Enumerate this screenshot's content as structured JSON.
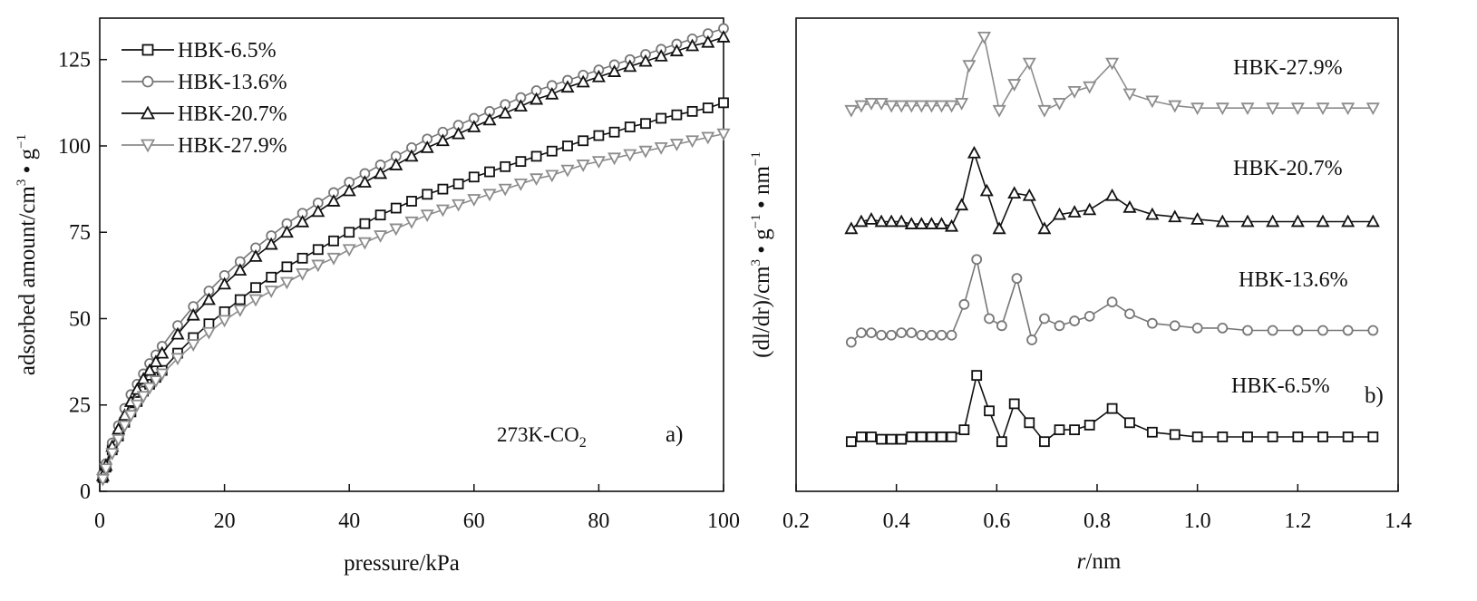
{
  "chart_data": [
    {
      "panel": "a)",
      "type": "line",
      "annotation_main": "273K-CO",
      "annotation_sub": "2",
      "xlabel": "pressure/kPa",
      "ylabel": "adsorbed amount/cm",
      "ylabel_sup1": "3",
      "ylabel_mid": " • g",
      "ylabel_sup2": "−1",
      "xlim": [
        0,
        100
      ],
      "ylim": [
        0,
        137
      ],
      "xticks": [
        0,
        20,
        40,
        60,
        80,
        100
      ],
      "yticks": [
        0,
        25,
        50,
        75,
        100,
        125
      ],
      "legend_position": "top-left",
      "series": [
        {
          "name": "HBK-6.5%",
          "marker": "square",
          "color": "#111111",
          "x": [
            0.5,
            1,
            2,
            3,
            4,
            5,
            6,
            7,
            8,
            9,
            10,
            12.5,
            15,
            17.5,
            20,
            22.5,
            25,
            27.5,
            30,
            32.5,
            35,
            37.5,
            40,
            42.5,
            45,
            47.5,
            50,
            52.5,
            55,
            57.5,
            60,
            62.5,
            65,
            67.5,
            70,
            72.5,
            75,
            77.5,
            80,
            82.5,
            85,
            87.5,
            90,
            92.5,
            95,
            97.5,
            100
          ],
          "y": [
            4,
            7,
            12,
            16,
            20,
            23,
            26,
            29,
            31,
            33,
            35,
            40,
            44.5,
            48.5,
            52,
            55.5,
            59,
            62,
            65,
            67.5,
            70,
            72.5,
            75,
            77.5,
            80,
            82,
            84,
            86,
            87.5,
            89,
            91,
            92.5,
            94,
            95.5,
            97,
            98.5,
            100,
            101.5,
            103,
            104,
            105.5,
            106.5,
            108,
            109,
            110,
            111,
            112.5
          ]
        },
        {
          "name": "HBK-13.6%",
          "marker": "circle",
          "color": "#777777",
          "x": [
            0.5,
            1,
            2,
            3,
            4,
            5,
            6,
            7,
            8,
            9,
            10,
            12.5,
            15,
            17.5,
            20,
            22.5,
            25,
            27.5,
            30,
            32.5,
            35,
            37.5,
            40,
            42.5,
            45,
            47.5,
            50,
            52.5,
            55,
            57.5,
            60,
            62.5,
            65,
            67.5,
            70,
            72.5,
            75,
            77.5,
            80,
            82.5,
            85,
            87.5,
            90,
            92.5,
            95,
            97.5,
            100
          ],
          "y": [
            5,
            8,
            14,
            19,
            24,
            28,
            31,
            34,
            37,
            39.5,
            42,
            48,
            53.5,
            58,
            62.5,
            66.5,
            70.5,
            74,
            77.5,
            80.5,
            83.5,
            86.5,
            89.5,
            92,
            94.5,
            97,
            99.5,
            102,
            104,
            106,
            108,
            110,
            112,
            114,
            116,
            117.5,
            119,
            120.5,
            122,
            123.5,
            125,
            126.5,
            128,
            129.5,
            131,
            132.5,
            134
          ]
        },
        {
          "name": "HBK-20.7%",
          "marker": "triangle-up",
          "color": "#111111",
          "x": [
            0.5,
            1,
            2,
            3,
            4,
            5,
            6,
            7,
            8,
            9,
            10,
            12.5,
            15,
            17.5,
            20,
            22.5,
            25,
            27.5,
            30,
            32.5,
            35,
            37.5,
            40,
            42.5,
            45,
            47.5,
            50,
            52.5,
            55,
            57.5,
            60,
            62.5,
            65,
            67.5,
            70,
            72.5,
            75,
            77.5,
            80,
            82.5,
            85,
            87.5,
            90,
            92.5,
            95,
            97.5,
            100
          ],
          "y": [
            4.5,
            7.5,
            13,
            18,
            22,
            26,
            29.5,
            32.5,
            35,
            37.5,
            40,
            45.5,
            51,
            55.5,
            60,
            64,
            68,
            71.5,
            75,
            78,
            81,
            84,
            87,
            89.5,
            92,
            94.5,
            97,
            99.5,
            101.5,
            103.5,
            105.5,
            107.5,
            109.5,
            111.5,
            113.5,
            115,
            117,
            118.5,
            120,
            121.5,
            123,
            124.5,
            126,
            127.5,
            129,
            130,
            131.5
          ]
        },
        {
          "name": "HBK-27.9%",
          "marker": "triangle-down",
          "color": "#8c8c8c",
          "x": [
            0.5,
            1,
            2,
            3,
            4,
            5,
            6,
            7,
            8,
            9,
            10,
            12.5,
            15,
            17.5,
            20,
            22.5,
            25,
            27.5,
            30,
            32.5,
            35,
            37.5,
            40,
            42.5,
            45,
            47.5,
            50,
            52.5,
            55,
            57.5,
            60,
            62.5,
            65,
            67.5,
            70,
            72.5,
            75,
            77.5,
            80,
            82.5,
            85,
            87.5,
            90,
            92.5,
            95,
            97.5,
            100
          ],
          "y": [
            3.5,
            6.5,
            11,
            15,
            19,
            22,
            25,
            27.5,
            30,
            32,
            34,
            38.5,
            42.5,
            46,
            49.5,
            52.5,
            55.5,
            58,
            60.5,
            63,
            65.5,
            67.5,
            70,
            72,
            74,
            76,
            78,
            80,
            81.5,
            83,
            84.5,
            86,
            87.5,
            89,
            90.5,
            91.5,
            93,
            94.5,
            95.5,
            96.5,
            97.5,
            98.5,
            99.5,
            100.5,
            101.5,
            102.5,
            103.5
          ]
        }
      ]
    },
    {
      "panel": "b)",
      "type": "line",
      "xlabel_italic": "r",
      "xlabel_rest": "/nm",
      "ylabel": "(dl/dr)/cm",
      "ylabel_sup1": "3",
      "ylabel_mid": " • g",
      "ylabel_sup2": "−1",
      "ylabel_mid2": " • nm",
      "ylabel_sup3": "−1",
      "xlim": [
        0.2,
        1.4
      ],
      "ylim": [
        0,
        100
      ],
      "xticks": [
        "0.2",
        "0.4",
        "0.6",
        "0.8",
        "1.0",
        "1.2",
        "1.4"
      ],
      "ytick_labels": "none",
      "note": "curves vertically offset (arbitrary units)",
      "series": [
        {
          "name": "HBK-27.9%",
          "marker": "triangle-down",
          "color": "#8c8c8c",
          "x": [
            0.31,
            0.33,
            0.35,
            0.37,
            0.39,
            0.41,
            0.43,
            0.45,
            0.47,
            0.49,
            0.51,
            0.53,
            0.545,
            0.575,
            0.605,
            0.635,
            0.665,
            0.695,
            0.725,
            0.755,
            0.785,
            0.83,
            0.865,
            0.91,
            0.955,
            1.0,
            1.05,
            1.1,
            1.15,
            1.2,
            1.25,
            1.3,
            1.35
          ],
          "y": [
            80.5,
            81.5,
            82,
            82,
            81.5,
            81.5,
            81.5,
            81.5,
            81.5,
            81.5,
            81.5,
            82,
            90,
            96,
            80.5,
            86,
            90.5,
            80.5,
            82,
            84.5,
            85.5,
            90.5,
            84,
            82.5,
            81.5,
            81,
            81,
            81,
            81,
            81,
            81,
            81,
            81
          ]
        },
        {
          "name": "HBK-20.7%",
          "marker": "triangle-up",
          "color": "#111111",
          "x": [
            0.31,
            0.33,
            0.35,
            0.37,
            0.39,
            0.41,
            0.43,
            0.45,
            0.47,
            0.49,
            0.51,
            0.53,
            0.555,
            0.58,
            0.605,
            0.635,
            0.665,
            0.695,
            0.725,
            0.755,
            0.785,
            0.83,
            0.865,
            0.91,
            0.955,
            1.0,
            1.05,
            1.1,
            1.15,
            1.2,
            1.25,
            1.3,
            1.35
          ],
          "y": [
            55.5,
            57,
            57.5,
            57,
            57,
            57,
            56.5,
            56.5,
            56.5,
            56.5,
            56,
            60.5,
            71.5,
            63.5,
            55.5,
            63,
            62.5,
            55.5,
            58.5,
            59,
            59.5,
            62.5,
            60,
            58.5,
            58,
            57.5,
            57,
            57,
            57,
            57,
            57,
            57,
            57
          ]
        },
        {
          "name": "HBK-13.6%",
          "marker": "circle",
          "color": "#777777",
          "x": [
            0.31,
            0.33,
            0.35,
            0.37,
            0.39,
            0.41,
            0.43,
            0.45,
            0.47,
            0.49,
            0.51,
            0.535,
            0.56,
            0.585,
            0.61,
            0.64,
            0.67,
            0.695,
            0.725,
            0.755,
            0.785,
            0.83,
            0.865,
            0.91,
            0.955,
            1.0,
            1.05,
            1.1,
            1.15,
            1.2,
            1.25,
            1.3,
            1.35
          ],
          "y": [
            31.5,
            33.5,
            33.5,
            33,
            33,
            33.5,
            33.5,
            33,
            33,
            33,
            33,
            39.5,
            49,
            36.5,
            35,
            45,
            32,
            36.5,
            35,
            36,
            37,
            40,
            37.5,
            35.5,
            35,
            34.5,
            34.5,
            34,
            34,
            34,
            34,
            34,
            34
          ]
        },
        {
          "name": "HBK-6.5%",
          "marker": "square",
          "color": "#111111",
          "x": [
            0.31,
            0.33,
            0.35,
            0.37,
            0.39,
            0.41,
            0.43,
            0.45,
            0.47,
            0.49,
            0.51,
            0.535,
            0.56,
            0.585,
            0.61,
            0.635,
            0.665,
            0.695,
            0.725,
            0.755,
            0.785,
            0.83,
            0.865,
            0.91,
            0.955,
            1.0,
            1.05,
            1.1,
            1.15,
            1.2,
            1.25,
            1.3,
            1.35
          ],
          "y": [
            10.5,
            11.5,
            11.5,
            11,
            11,
            11,
            11.5,
            11.5,
            11.5,
            11.5,
            11.5,
            13,
            24.5,
            17,
            10.5,
            18.5,
            14.5,
            10.5,
            13,
            13,
            14,
            17.5,
            14.5,
            12.5,
            12,
            11.5,
            11.5,
            11.5,
            11.5,
            11.5,
            11.5,
            11.5,
            11.5
          ]
        }
      ],
      "curve_labels": [
        "HBK-27.9%",
        "HBK-20.7%",
        "HBK-13.6%",
        "HBK-6.5%"
      ]
    }
  ]
}
